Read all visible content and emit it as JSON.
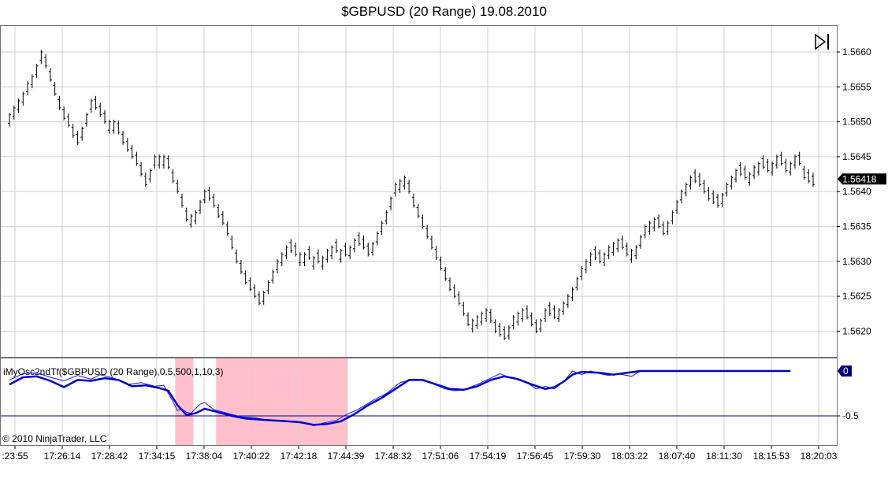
{
  "title": "$GBPUSD (20 Range)  19.08.2010",
  "colors": {
    "price_bars": "#000000",
    "grid": "#d0d0d0",
    "oscillator_fast": "#1a1aff",
    "oscillator_slow": "#0000cc",
    "zero_line": "#000080",
    "highlight": "#ffc0cb",
    "last_price_bg": "#000000",
    "last_price_text": "#ffffff",
    "osc_badge_bg": "#000080"
  },
  "icons": {
    "scroll_end": "skip-to-end-icon"
  },
  "chart_data": [
    {
      "type": "ohlc",
      "instrument": "$GBPUSD (20 Range)",
      "ylim": [
        1.5616,
        1.5664
      ],
      "y_ticks": [
        "1.5660",
        "1.5655",
        "1.5650",
        "1.5645",
        "1.5640",
        "1.5635",
        "1.5630",
        "1.5625",
        "1.5620"
      ],
      "last_price_label": "1.56418",
      "grid": true,
      "x_tick_labels": [
        ":23:55",
        "17:26:14",
        "17:28:42",
        "17:34:15",
        "17:38:04",
        "17:40:22",
        "17:42:18",
        "17:44:39",
        "17:48:32",
        "17:51:06",
        "17:54:19",
        "17:56:45",
        "17:59:30",
        "18:03:22",
        "18:07:40",
        "18:11:30",
        "18:15:53",
        "18:20:03"
      ],
      "close_path": [
        [
          0,
          1.5651
        ],
        [
          3,
          1.5654
        ],
        [
          6,
          1.5658
        ],
        [
          7,
          1.566
        ],
        [
          9,
          1.5656
        ],
        [
          11,
          1.5652
        ],
        [
          14,
          1.5648
        ],
        [
          15,
          1.5647
        ],
        [
          17,
          1.5651
        ],
        [
          18,
          1.5653
        ],
        [
          21,
          1.565
        ],
        [
          23,
          1.565
        ],
        [
          25,
          1.5647
        ],
        [
          28,
          1.5644
        ],
        [
          30,
          1.5641
        ],
        [
          32,
          1.5645
        ],
        [
          34,
          1.5645
        ],
        [
          37,
          1.564
        ],
        [
          39,
          1.5636
        ],
        [
          41,
          1.5637
        ],
        [
          43,
          1.564
        ],
        [
          45,
          1.5638
        ],
        [
          48,
          1.5634
        ],
        [
          50,
          1.563
        ],
        [
          52,
          1.5627
        ],
        [
          55,
          1.5624
        ],
        [
          57,
          1.5627
        ],
        [
          59,
          1.563
        ],
        [
          61,
          1.5632
        ],
        [
          63,
          1.5631
        ],
        [
          65,
          1.5631
        ],
        [
          68,
          1.563
        ],
        [
          71,
          1.5632
        ],
        [
          74,
          1.5631
        ],
        [
          76,
          1.5633
        ],
        [
          78,
          1.5632
        ],
        [
          79,
          1.5631
        ],
        [
          81,
          1.5634
        ],
        [
          83,
          1.5637
        ],
        [
          85,
          1.5641
        ],
        [
          87,
          1.5642
        ],
        [
          89,
          1.5638
        ],
        [
          91,
          1.5635
        ],
        [
          93,
          1.5632
        ],
        [
          95,
          1.5629
        ],
        [
          97,
          1.5626
        ],
        [
          99,
          1.5624
        ],
        [
          101,
          1.5621
        ],
        [
          103,
          1.5622
        ],
        [
          105,
          1.5623
        ],
        [
          107,
          1.562
        ],
        [
          109,
          1.5619
        ],
        [
          111,
          1.5622
        ],
        [
          113,
          1.5623
        ],
        [
          115,
          1.5621
        ],
        [
          116,
          1.562
        ],
        [
          118,
          1.5623
        ],
        [
          120,
          1.5622
        ],
        [
          122,
          1.5624
        ],
        [
          124,
          1.5626
        ],
        [
          126,
          1.5629
        ],
        [
          128,
          1.5631
        ],
        [
          130,
          1.563
        ],
        [
          132,
          1.5632
        ],
        [
          134,
          1.5633
        ],
        [
          136,
          1.5631
        ],
        [
          138,
          1.5632
        ],
        [
          140,
          1.5635
        ],
        [
          142,
          1.5636
        ],
        [
          144,
          1.5634
        ],
        [
          146,
          1.5637
        ],
        [
          148,
          1.564
        ],
        [
          150,
          1.5642
        ],
        [
          152,
          1.5641
        ],
        [
          154,
          1.5639
        ],
        [
          156,
          1.5638
        ],
        [
          158,
          1.5641
        ],
        [
          160,
          1.5643
        ],
        [
          162,
          1.5642
        ],
        [
          165,
          1.5644
        ],
        [
          167,
          1.5643
        ],
        [
          169,
          1.5645
        ],
        [
          171,
          1.5643
        ],
        [
          173,
          1.5645
        ],
        [
          174,
          1.5644
        ],
        [
          175,
          1.5642
        ],
        [
          177,
          1.5641
        ]
      ]
    },
    {
      "type": "line",
      "indicator_label": "iMyOsc2ndTf($GBPUSD (20 Range),0.5,500,1,10,3)",
      "ylim": [
        -0.62,
        0.04
      ],
      "y_ticks": [
        "-0.5"
      ],
      "badge_label": "0",
      "reference_line": -0.5,
      "highlight_bands_x": [
        [
          36.5,
          40.5
        ],
        [
          45.5,
          74.5
        ]
      ],
      "series": [
        {
          "role": "fast",
          "points": [
            [
              0,
              -0.1
            ],
            [
              3,
              -0.03
            ],
            [
              6,
              -0.02
            ],
            [
              9,
              -0.07
            ],
            [
              12,
              -0.11
            ],
            [
              15,
              -0.05
            ],
            [
              18,
              -0.09
            ],
            [
              20,
              -0.04
            ],
            [
              23,
              -0.08
            ],
            [
              26,
              -0.15
            ],
            [
              29,
              -0.13
            ],
            [
              32,
              -0.17
            ],
            [
              34,
              -0.16
            ],
            [
              36,
              -0.34
            ],
            [
              37,
              -0.44
            ],
            [
              38,
              -0.42
            ],
            [
              39,
              -0.46
            ],
            [
              40,
              -0.47
            ],
            [
              42,
              -0.37
            ],
            [
              43,
              -0.35
            ],
            [
              45,
              -0.43
            ],
            [
              48,
              -0.47
            ],
            [
              51,
              -0.51
            ],
            [
              54,
              -0.52
            ],
            [
              57,
              -0.55
            ],
            [
              60,
              -0.55
            ],
            [
              63,
              -0.57
            ],
            [
              66,
              -0.59
            ],
            [
              67,
              -0.61
            ],
            [
              69,
              -0.58
            ],
            [
              72,
              -0.55
            ],
            [
              74,
              -0.49
            ],
            [
              77,
              -0.42
            ],
            [
              80,
              -0.33
            ],
            [
              83,
              -0.25
            ],
            [
              86,
              -0.13
            ],
            [
              89,
              -0.09
            ],
            [
              92,
              -0.11
            ],
            [
              94,
              -0.16
            ],
            [
              96,
              -0.2
            ],
            [
              98,
              -0.22
            ],
            [
              100,
              -0.21
            ],
            [
              103,
              -0.15
            ],
            [
              106,
              -0.08
            ],
            [
              108,
              -0.03
            ],
            [
              110,
              -0.07
            ],
            [
              112,
              -0.1
            ],
            [
              114,
              -0.13
            ],
            [
              116,
              -0.2
            ],
            [
              118,
              -0.17
            ],
            [
              120,
              -0.2
            ],
            [
              122,
              -0.12
            ],
            [
              124,
              0.0
            ],
            [
              126,
              -0.04
            ],
            [
              128,
              0.0
            ],
            [
              130,
              -0.03
            ],
            [
              132,
              -0.05
            ],
            [
              134,
              -0.03
            ],
            [
              137,
              -0.06
            ],
            [
              139,
              0.0
            ],
            [
              150,
              0.0
            ],
            [
              172,
              0.0
            ]
          ]
        },
        {
          "role": "slow",
          "points": [
            [
              0,
              -0.15
            ],
            [
              3,
              -0.07
            ],
            [
              6,
              -0.06
            ],
            [
              9,
              -0.11
            ],
            [
              12,
              -0.18
            ],
            [
              15,
              -0.1
            ],
            [
              18,
              -0.11
            ],
            [
              21,
              -0.08
            ],
            [
              24,
              -0.1
            ],
            [
              27,
              -0.17
            ],
            [
              30,
              -0.16
            ],
            [
              33,
              -0.19
            ],
            [
              35,
              -0.22
            ],
            [
              37,
              -0.38
            ],
            [
              39,
              -0.49
            ],
            [
              41,
              -0.47
            ],
            [
              43,
              -0.42
            ],
            [
              46,
              -0.46
            ],
            [
              49,
              -0.5
            ],
            [
              52,
              -0.53
            ],
            [
              55,
              -0.54
            ],
            [
              58,
              -0.55
            ],
            [
              61,
              -0.56
            ],
            [
              64,
              -0.57
            ],
            [
              67,
              -0.6
            ],
            [
              70,
              -0.59
            ],
            [
              73,
              -0.56
            ],
            [
              76,
              -0.48
            ],
            [
              79,
              -0.38
            ],
            [
              82,
              -0.3
            ],
            [
              85,
              -0.2
            ],
            [
              88,
              -0.1
            ],
            [
              91,
              -0.1
            ],
            [
              94,
              -0.15
            ],
            [
              97,
              -0.2
            ],
            [
              100,
              -0.21
            ],
            [
              103,
              -0.17
            ],
            [
              106,
              -0.1
            ],
            [
              109,
              -0.06
            ],
            [
              112,
              -0.09
            ],
            [
              115,
              -0.15
            ],
            [
              118,
              -0.2
            ],
            [
              120,
              -0.18
            ],
            [
              122,
              -0.12
            ],
            [
              124,
              -0.04
            ],
            [
              126,
              -0.01
            ],
            [
              130,
              -0.02
            ],
            [
              133,
              -0.04
            ],
            [
              136,
              -0.02
            ],
            [
              139,
              0.0
            ],
            [
              172,
              0.0
            ]
          ]
        }
      ]
    }
  ],
  "copyright": "© 2010 NinjaTrader, LLC"
}
